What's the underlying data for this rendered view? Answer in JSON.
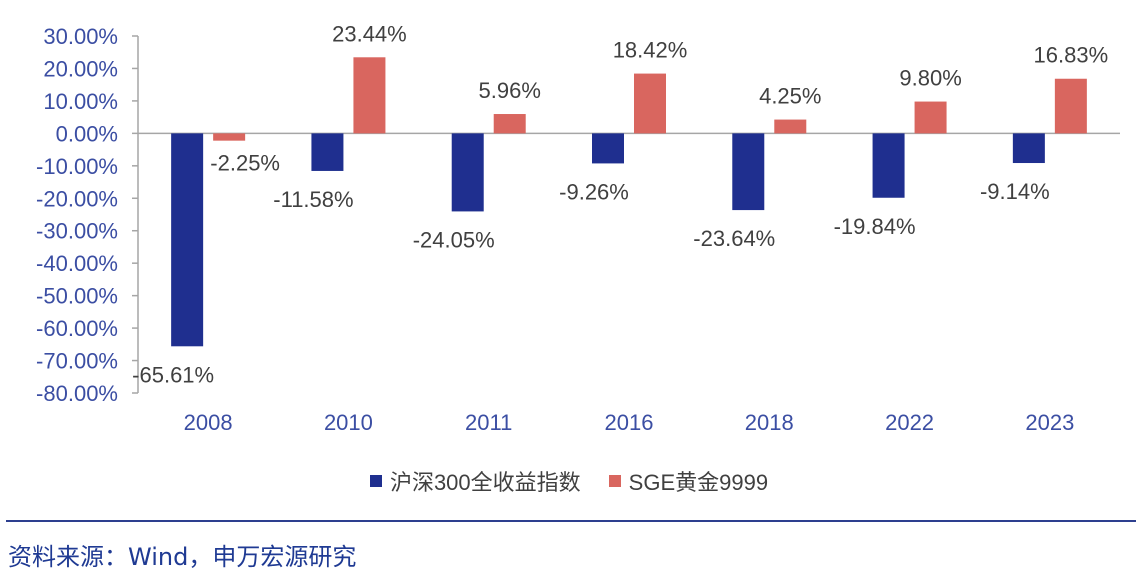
{
  "chart_data": {
    "type": "bar",
    "categories": [
      "2008",
      "2010",
      "2011",
      "2016",
      "2018",
      "2022",
      "2023"
    ],
    "series": [
      {
        "name": "沪深300全收益指数",
        "values": [
          -65.61,
          -11.58,
          -24.05,
          -9.26,
          -23.64,
          -19.84,
          -9.14
        ],
        "color": "#1f2f8f"
      },
      {
        "name": "SGE黄金9999",
        "values": [
          -2.25,
          23.44,
          5.96,
          18.42,
          4.25,
          9.8,
          16.83
        ],
        "color": "#d9665f"
      }
    ],
    "data_labels": [
      [
        "-65.61%",
        "-11.58%",
        "-24.05%",
        "-9.26%",
        "-23.64%",
        "-19.84%",
        "-9.14%"
      ],
      [
        "-2.25%",
        "23.44%",
        "5.96%",
        "18.42%",
        "4.25%",
        "9.80%",
        "16.83%"
      ]
    ],
    "yticks": [
      30,
      20,
      10,
      0,
      -10,
      -20,
      -30,
      -40,
      -50,
      -60,
      -70,
      -80
    ],
    "ytick_labels": [
      "30.00%",
      "20.00%",
      "10.00%",
      "0.00%",
      "-10.00%",
      "-20.00%",
      "-30.00%",
      "-40.00%",
      "-50.00%",
      "-60.00%",
      "-70.00%",
      "-80.00%"
    ],
    "ylim": [
      -80,
      30
    ],
    "grid": false,
    "legend_position": "bottom"
  },
  "legend": {
    "items": [
      {
        "label": "沪深300全收益指数",
        "color": "#1f2f8f"
      },
      {
        "label": "SGE黄金9999",
        "color": "#d9665f"
      }
    ]
  },
  "source": {
    "text": "资料来源：Wind，申万宏源研究"
  },
  "colors": {
    "axis": "#a6a6a6",
    "tick_text": "#3b4ea3",
    "rule": "#2d3f8f"
  }
}
